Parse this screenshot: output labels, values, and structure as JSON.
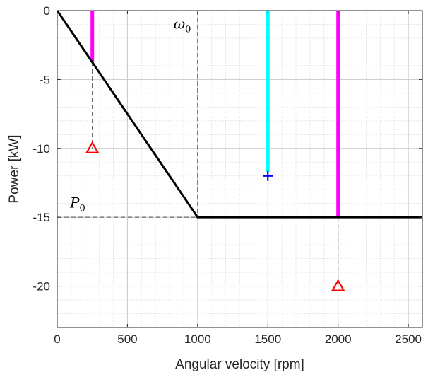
{
  "chart_data": {
    "type": "line",
    "title": "",
    "xlabel": "Angular velocity [rpm]",
    "ylabel": "Power [kW]",
    "xlim": [
      0,
      2600
    ],
    "ylim": [
      -23,
      0
    ],
    "xticks": [
      0,
      500,
      1000,
      1500,
      2000,
      2500
    ],
    "yticks": [
      0,
      -5,
      -10,
      -15,
      -20
    ],
    "xtick_labels": [
      "0",
      "500",
      "1000",
      "1500",
      "2000",
      "2500"
    ],
    "ytick_labels": [
      "0",
      "-5",
      "-10",
      "-15",
      "-20"
    ],
    "grid": true,
    "minor_grid": true,
    "minor_x_step": 100,
    "minor_y_step": 1,
    "legend": "none",
    "series": [
      {
        "values": [
          [
            0,
            0
          ],
          [
            1000,
            -15
          ],
          [
            2600,
            -15
          ]
        ],
        "color": "#000000",
        "style": "solid"
      }
    ],
    "vertical_bars": [
      {
        "x": 250,
        "y_from": 0,
        "y_to": -3.75,
        "color": "#ff00ff"
      },
      {
        "x": 1500,
        "y_from": 0,
        "y_to": -11.7,
        "color": "#00ffff"
      },
      {
        "x": 2000,
        "y_from": 0,
        "y_to": -15,
        "color": "#ff00ff"
      }
    ],
    "dashed_guides": [
      {
        "points": [
          [
            1000,
            0
          ],
          [
            1000,
            -15
          ]
        ]
      },
      {
        "points": [
          [
            0,
            -15
          ],
          [
            1000,
            -15
          ]
        ]
      },
      {
        "points": [
          [
            250,
            -3.75
          ],
          [
            250,
            -10
          ]
        ]
      },
      {
        "points": [
          [
            2000,
            -15
          ],
          [
            2000,
            -20
          ]
        ]
      }
    ],
    "markers": [
      {
        "x": 250,
        "y": -10,
        "shape": "triangle",
        "color": "#ff0000"
      },
      {
        "x": 2000,
        "y": -20,
        "shape": "triangle",
        "color": "#ff0000"
      },
      {
        "x": 1500,
        "y": -12,
        "shape": "plus",
        "color": "#0000ff"
      }
    ],
    "annotations": [
      {
        "base": "ω",
        "sub": "0",
        "x": 1000,
        "y": -1.3,
        "anchor": "right"
      },
      {
        "base": "P",
        "sub": "0",
        "x": 90,
        "y": -14.3,
        "anchor": "left"
      }
    ]
  }
}
